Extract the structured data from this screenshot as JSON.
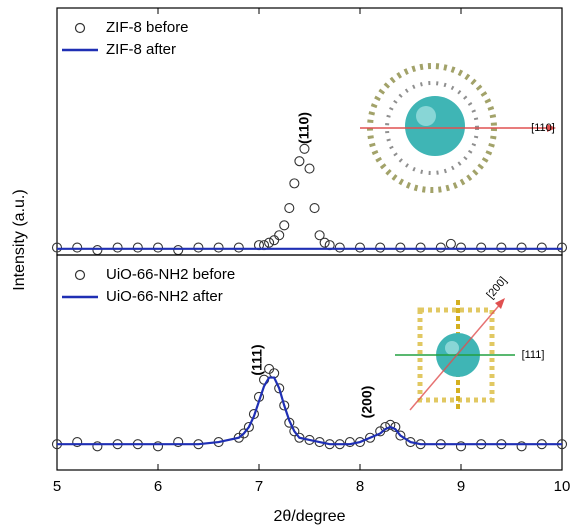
{
  "chart_data": [
    {
      "type": "line",
      "xlim": [
        5,
        10
      ],
      "ylim": [
        0,
        1
      ],
      "x": [
        5.0,
        5.2,
        5.4,
        5.6,
        5.8,
        6.0,
        6.2,
        6.4,
        6.6,
        6.8,
        7.0,
        7.05,
        7.1,
        7.15,
        7.2,
        7.25,
        7.3,
        7.35,
        7.4,
        7.45,
        7.5,
        7.55,
        7.6,
        7.65,
        7.7,
        7.8,
        8.0,
        8.2,
        8.4,
        8.6,
        8.8,
        8.9,
        9.0,
        9.2,
        9.4,
        9.6,
        9.8,
        10.0
      ],
      "legend": "upper left",
      "series": [
        {
          "name": "ZIF-8 before",
          "color": "#333333",
          "mode": "markers",
          "values": [
            0.03,
            0.03,
            0.02,
            0.03,
            0.03,
            0.03,
            0.02,
            0.03,
            0.03,
            0.03,
            0.04,
            0.04,
            0.05,
            0.06,
            0.08,
            0.12,
            0.19,
            0.29,
            0.38,
            0.43,
            0.35,
            0.19,
            0.08,
            0.05,
            0.04,
            0.03,
            0.03,
            0.03,
            0.03,
            0.03,
            0.03,
            0.045,
            0.03,
            0.03,
            0.03,
            0.03,
            0.03,
            0.03
          ]
        },
        {
          "name": "ZIF-8 after",
          "color": "#1f2fb4",
          "mode": "lines",
          "values": [
            0.025,
            0.025,
            0.025,
            0.025,
            0.025,
            0.025,
            0.025,
            0.025,
            0.025,
            0.025,
            0.025,
            0.025,
            0.025,
            0.025,
            0.025,
            0.025,
            0.025,
            0.025,
            0.025,
            0.025,
            0.025,
            0.025,
            0.025,
            0.025,
            0.025,
            0.025,
            0.025,
            0.025,
            0.025,
            0.025,
            0.025,
            0.025,
            0.025,
            0.025,
            0.025,
            0.025,
            0.025,
            0.025
          ]
        }
      ],
      "annotations": [
        "(110)",
        "[110]"
      ]
    },
    {
      "type": "line",
      "xlabel": "2θ/degree",
      "ylabel": "Intensity (a.u.)",
      "xlim": [
        5,
        10
      ],
      "ylim": [
        0,
        1
      ],
      "xticks": [
        5,
        6,
        7,
        8,
        9,
        10
      ],
      "x": [
        5.0,
        5.2,
        5.4,
        5.6,
        5.8,
        6.0,
        6.2,
        6.4,
        6.6,
        6.8,
        6.85,
        6.9,
        6.95,
        7.0,
        7.05,
        7.1,
        7.15,
        7.2,
        7.25,
        7.3,
        7.35,
        7.4,
        7.5,
        7.6,
        7.7,
        7.8,
        7.9,
        8.0,
        8.1,
        8.2,
        8.25,
        8.3,
        8.35,
        8.4,
        8.5,
        8.6,
        8.8,
        9.0,
        9.2,
        9.4,
        9.6,
        9.8,
        10.0
      ],
      "legend": "upper left",
      "series": [
        {
          "name": "UiO-66-NH2 before",
          "color": "#333333",
          "mode": "markers",
          "values": [
            0.12,
            0.13,
            0.11,
            0.12,
            0.12,
            0.11,
            0.13,
            0.12,
            0.13,
            0.15,
            0.17,
            0.2,
            0.26,
            0.34,
            0.42,
            0.47,
            0.45,
            0.38,
            0.3,
            0.22,
            0.18,
            0.15,
            0.14,
            0.13,
            0.12,
            0.12,
            0.13,
            0.13,
            0.15,
            0.18,
            0.2,
            0.21,
            0.2,
            0.16,
            0.13,
            0.12,
            0.12,
            0.11,
            0.12,
            0.12,
            0.11,
            0.12,
            0.12
          ]
        },
        {
          "name": "UiO-66-NH2 after",
          "color": "#1f2fb4",
          "mode": "lines",
          "values": [
            0.12,
            0.12,
            0.12,
            0.12,
            0.12,
            0.12,
            0.12,
            0.12,
            0.13,
            0.15,
            0.17,
            0.2,
            0.25,
            0.32,
            0.39,
            0.43,
            0.43,
            0.38,
            0.3,
            0.23,
            0.18,
            0.15,
            0.14,
            0.13,
            0.12,
            0.12,
            0.12,
            0.13,
            0.15,
            0.17,
            0.19,
            0.2,
            0.19,
            0.16,
            0.13,
            0.12,
            0.12,
            0.12,
            0.12,
            0.12,
            0.12,
            0.12,
            0.12
          ]
        }
      ],
      "annotations": [
        "(111)",
        "(200)",
        "[200]",
        "[111]"
      ]
    }
  ]
}
